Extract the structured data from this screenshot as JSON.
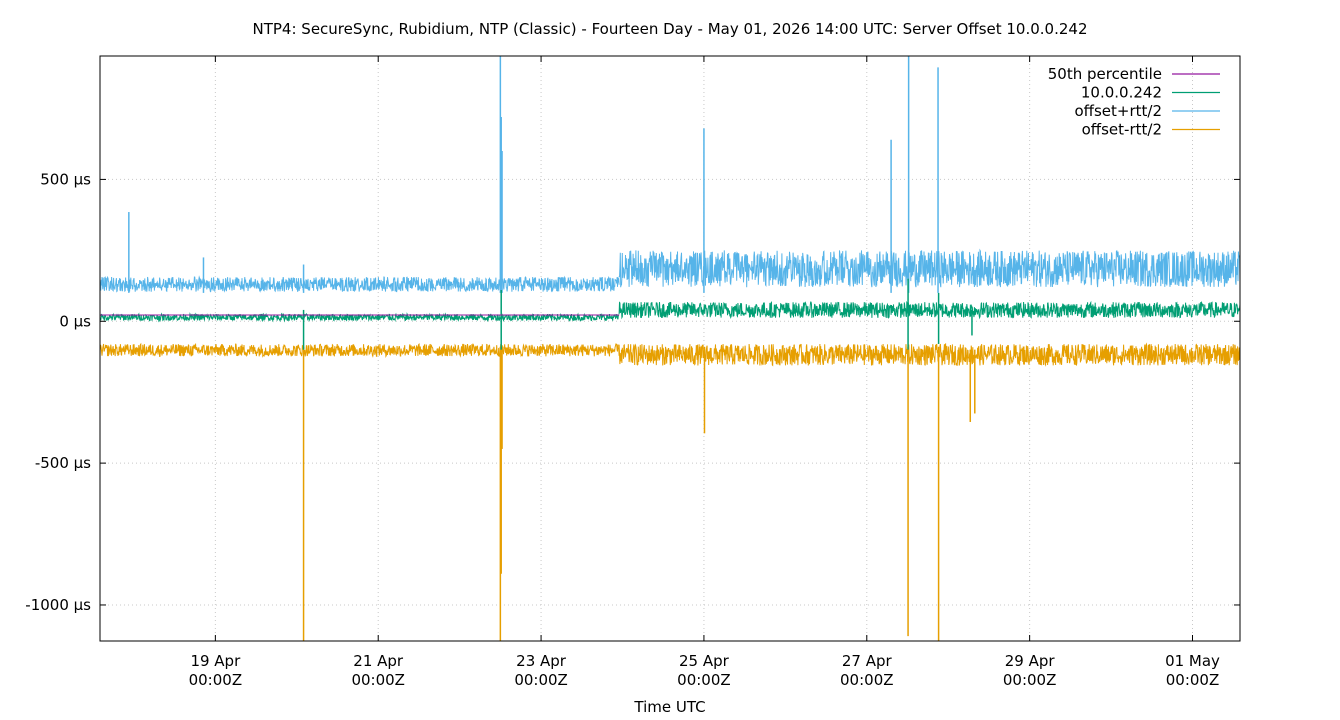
{
  "chart_data": {
    "type": "line",
    "title": "NTP4: SecureSync, Rubidium, NTP (Classic) - Fourteen Day - May 01, 2026 14:00 UTC: Server Offset 10.0.0.242",
    "xlabel": "Time UTC",
    "ylabel": "",
    "xlim": [
      "2026-04-17T14:00Z",
      "2026-05-01T14:00Z"
    ],
    "ylim": [
      -1127,
      935
    ],
    "grid": true,
    "legend_position": "top-right",
    "x_ticks": [
      {
        "time": "2026-04-19T00:00Z",
        "line1": "19 Apr",
        "line2": "00:00Z"
      },
      {
        "time": "2026-04-21T00:00Z",
        "line1": "21 Apr",
        "line2": "00:00Z"
      },
      {
        "time": "2026-04-23T00:00Z",
        "line1": "23 Apr",
        "line2": "00:00Z"
      },
      {
        "time": "2026-04-25T00:00Z",
        "line1": "25 Apr",
        "line2": "00:00Z"
      },
      {
        "time": "2026-04-27T00:00Z",
        "line1": "27 Apr",
        "line2": "00:00Z"
      },
      {
        "time": "2026-04-29T00:00Z",
        "line1": "29 Apr",
        "line2": "00:00Z"
      },
      {
        "time": "2026-05-01T00:00Z",
        "line1": "01 May",
        "line2": "00:00Z"
      }
    ],
    "y_ticks": [
      {
        "value": 500,
        "label": "500 µs"
      },
      {
        "value": 0,
        "label": "0 µs"
      },
      {
        "value": -500,
        "label": "-500 µs"
      },
      {
        "value": -1000,
        "label": "-1000 µs"
      }
    ],
    "series": [
      {
        "name": "50th percentile",
        "color": "#94179f",
        "segments": [
          {
            "start": "2026-04-17T14:00Z",
            "end": "2026-04-23T23:00Z",
            "value": 22
          }
        ]
      },
      {
        "name": "10.0.0.242",
        "color": "#009e73",
        "segments": [
          {
            "start": "2026-04-17T14:00Z",
            "end": "2026-04-23T23:00Z",
            "base": 14,
            "noise": 12
          },
          {
            "start": "2026-04-23T23:00Z",
            "end": "2026-05-01T14:00Z",
            "base": 40,
            "noise": 28
          }
        ],
        "spikes": [
          {
            "time": "2026-04-20T02:00Z",
            "low": -100,
            "high": 40
          },
          {
            "time": "2026-04-22T12:15Z",
            "low": -100,
            "high": 110
          },
          {
            "time": "2026-04-27T12:10Z",
            "low": -100,
            "high": 150
          },
          {
            "time": "2026-04-27T21:10Z",
            "low": -80,
            "high": 100
          },
          {
            "time": "2026-04-28T07:00Z",
            "low": -50,
            "high": 40
          }
        ]
      },
      {
        "name": "offset+rtt/2",
        "color": "#56b4e9",
        "segments": [
          {
            "start": "2026-04-17T14:00Z",
            "end": "2026-04-23T23:00Z",
            "base": 130,
            "noise": 26
          },
          {
            "start": "2026-04-23T23:00Z",
            "end": "2026-05-01T14:00Z",
            "base": 185,
            "noise": 65
          }
        ],
        "spikes": [
          {
            "time": "2026-04-17T22:30Z",
            "low": 100,
            "high": 385
          },
          {
            "time": "2026-04-18T20:30Z",
            "low": 100,
            "high": 225
          },
          {
            "time": "2026-04-20T02:00Z",
            "low": 100,
            "high": 200
          },
          {
            "time": "2026-04-22T12:00Z",
            "low": 100,
            "high": 935
          },
          {
            "time": "2026-04-22T12:15Z",
            "low": 100,
            "high": 720
          },
          {
            "time": "2026-04-22T12:30Z",
            "low": 100,
            "high": 600
          },
          {
            "time": "2026-04-25T00:00Z",
            "low": 100,
            "high": 680
          },
          {
            "time": "2026-04-27T07:10Z",
            "low": 100,
            "high": 640
          },
          {
            "time": "2026-04-27T12:20Z",
            "low": 100,
            "high": 935
          },
          {
            "time": "2026-04-27T21:00Z",
            "low": 100,
            "high": 895
          }
        ]
      },
      {
        "name": "offset-rtt/2",
        "color": "#e69f00",
        "segments": [
          {
            "start": "2026-04-17T14:00Z",
            "end": "2026-04-23T23:00Z",
            "base": -102,
            "noise": 22
          },
          {
            "start": "2026-04-23T23:00Z",
            "end": "2026-05-01T14:00Z",
            "base": -118,
            "noise": 38
          }
        ],
        "spikes": [
          {
            "time": "2026-04-20T02:00Z",
            "low": -1127,
            "high": -90
          },
          {
            "time": "2026-04-22T12:00Z",
            "low": -1127,
            "high": -90
          },
          {
            "time": "2026-04-22T12:15Z",
            "low": -890,
            "high": -90
          },
          {
            "time": "2026-04-22T12:30Z",
            "low": -450,
            "high": -90
          },
          {
            "time": "2026-04-25T00:10Z",
            "low": -395,
            "high": -90
          },
          {
            "time": "2026-04-27T12:10Z",
            "low": -1110,
            "high": -90
          },
          {
            "time": "2026-04-27T21:10Z",
            "low": -1127,
            "high": -90
          },
          {
            "time": "2026-04-28T06:30Z",
            "low": -355,
            "high": -100
          },
          {
            "time": "2026-04-28T07:50Z",
            "low": -325,
            "high": -100
          }
        ]
      }
    ]
  }
}
